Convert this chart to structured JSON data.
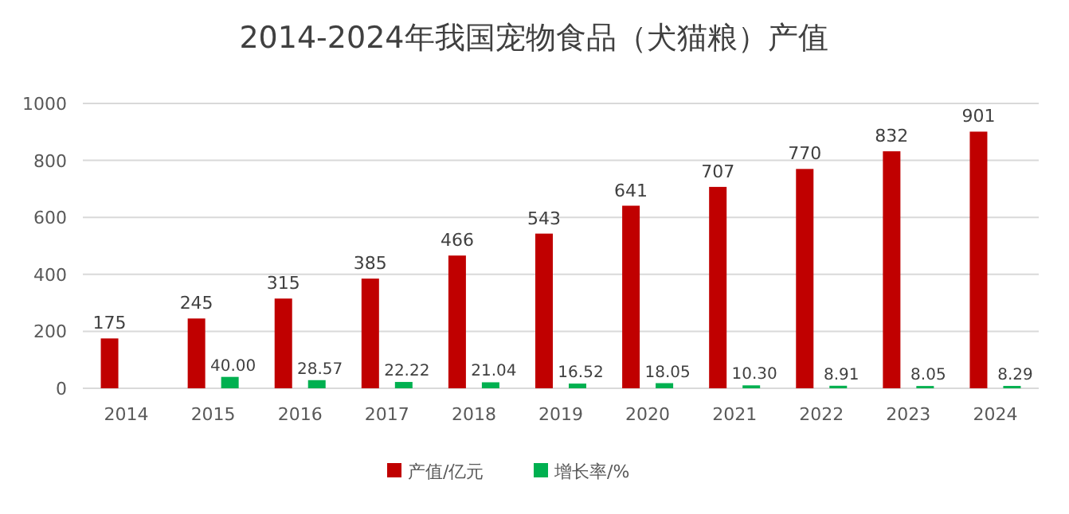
{
  "chart_data": {
    "type": "bar",
    "title": "2014-2024年我国宠物食品（犬猫粮）产值",
    "categories": [
      "2014",
      "2015",
      "2016",
      "2017",
      "2018",
      "2019",
      "2020",
      "2021",
      "2022",
      "2023",
      "2024"
    ],
    "series": [
      {
        "name": "产值/亿元",
        "color": "#c00000",
        "values": [
          175,
          245,
          315,
          385,
          466,
          543,
          641,
          707,
          770,
          832,
          901
        ],
        "value_labels": [
          "175",
          "245",
          "315",
          "385",
          "466",
          "543",
          "641",
          "707",
          "770",
          "832",
          "901"
        ]
      },
      {
        "name": "增长率/%",
        "color": "#00b050",
        "values": [
          null,
          40.0,
          28.57,
          22.22,
          21.04,
          16.52,
          18.05,
          10.3,
          8.91,
          8.05,
          8.29
        ],
        "value_labels": [
          null,
          "40.00",
          "28.57",
          "22.22",
          "21.04",
          "16.52",
          "18.05",
          "10.30",
          "8.91",
          "8.05",
          "8.29"
        ]
      }
    ],
    "ylim": [
      0,
      1000
    ],
    "yticks": [
      0,
      200,
      400,
      600,
      800,
      1000
    ],
    "grid": "y",
    "legend": "bottom"
  }
}
